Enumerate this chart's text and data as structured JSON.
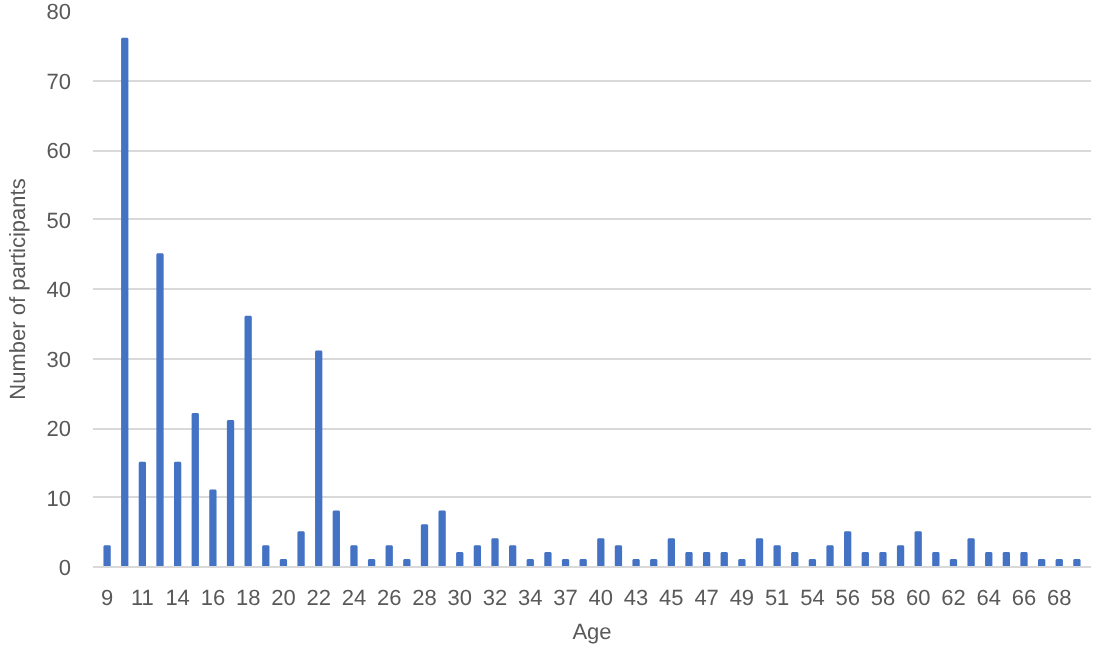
{
  "chart_data": {
    "type": "bar",
    "xlabel": "Age",
    "ylabel": "Number of participants",
    "categories": [
      "9",
      null,
      "11",
      null,
      "14",
      null,
      "16",
      null,
      "18",
      null,
      "20",
      null,
      "22",
      null,
      "24",
      null,
      "26",
      null,
      "28",
      null,
      "30",
      null,
      "32",
      null,
      "34",
      null,
      "37",
      null,
      "40",
      null,
      "43",
      null,
      "45",
      null,
      "47",
      null,
      "49",
      null,
      "51",
      null,
      "54",
      null,
      "56",
      null,
      "58",
      null,
      "60",
      null,
      "62",
      null,
      "64",
      null,
      "66",
      null,
      "68",
      null
    ],
    "values": [
      3,
      76,
      15,
      45,
      15,
      22,
      11,
      21,
      36,
      3,
      1,
      5,
      31,
      8,
      3,
      1,
      3,
      1,
      6,
      8,
      2,
      3,
      4,
      3,
      1,
      2,
      1,
      1,
      4,
      3,
      1,
      1,
      4,
      2,
      2,
      2,
      1,
      4,
      3,
      2,
      1,
      3,
      5,
      2,
      2,
      3,
      5,
      2,
      1,
      4,
      2,
      2,
      2,
      1,
      1,
      1
    ],
    "color": "#4472c4",
    "ylim": [
      0,
      80
    ],
    "yticks": [
      0,
      10,
      20,
      30,
      40,
      50,
      60,
      70,
      80
    ],
    "grid": "y"
  }
}
